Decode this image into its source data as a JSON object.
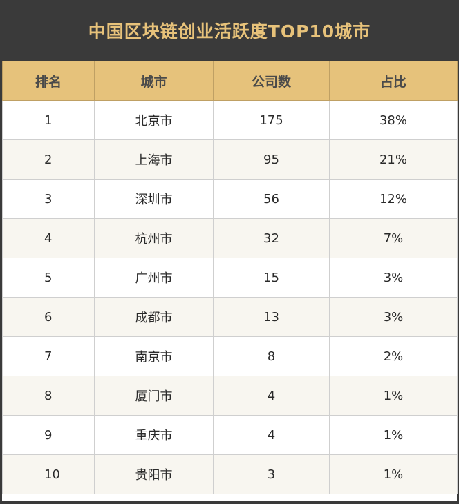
{
  "chart_data": {
    "type": "table",
    "title": "中国区块链创业活跃度TOP10城市",
    "columns": [
      "排名",
      "城市",
      "公司数",
      "占比"
    ],
    "rows": [
      [
        "1",
        "北京市",
        "175",
        "38%"
      ],
      [
        "2",
        "上海市",
        "95",
        "21%"
      ],
      [
        "3",
        "深圳市",
        "56",
        "12%"
      ],
      [
        "4",
        "杭州市",
        "32",
        "7%"
      ],
      [
        "5",
        "广州市",
        "15",
        "3%"
      ],
      [
        "6",
        "成都市",
        "13",
        "3%"
      ],
      [
        "7",
        "南京市",
        "8",
        "2%"
      ],
      [
        "8",
        "厦门市",
        "4",
        "1%"
      ],
      [
        "9",
        "重庆市",
        "4",
        "1%"
      ],
      [
        "10",
        "贵阳市",
        "3",
        "1%"
      ]
    ]
  },
  "colors": {
    "title_background": "#3a3a3a",
    "title_text": "#e7c27a",
    "header_background": "#e6c27b",
    "header_text": "#4a4a4a",
    "row_odd_background": "#ffffff",
    "row_even_background": "#f8f6f0"
  }
}
